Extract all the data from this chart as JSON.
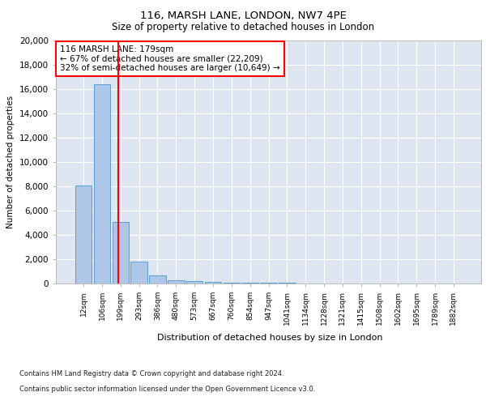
{
  "title1": "116, MARSH LANE, LONDON, NW7 4PE",
  "title2": "Size of property relative to detached houses in London",
  "xlabel": "Distribution of detached houses by size in London",
  "ylabel": "Number of detached properties",
  "bar_labels": [
    "12sqm",
    "106sqm",
    "199sqm",
    "293sqm",
    "386sqm",
    "480sqm",
    "573sqm",
    "667sqm",
    "760sqm",
    "854sqm",
    "947sqm",
    "1041sqm",
    "1134sqm",
    "1228sqm",
    "1321sqm",
    "1415sqm",
    "1508sqm",
    "1602sqm",
    "1695sqm",
    "1789sqm",
    "1882sqm"
  ],
  "bar_values": [
    8050,
    16400,
    5100,
    1800,
    650,
    250,
    180,
    130,
    100,
    60,
    50,
    40,
    0,
    0,
    0,
    0,
    0,
    0,
    0,
    0,
    0
  ],
  "bar_color": "#aec6e8",
  "bar_edge_color": "#5a9fd4",
  "red_line_bin": 1.87,
  "annotation_text": "116 MARSH LANE: 179sqm\n← 67% of detached houses are smaller (22,209)\n32% of semi-detached houses are larger (10,649) →",
  "footer1": "Contains HM Land Registry data © Crown copyright and database right 2024.",
  "footer2": "Contains public sector information licensed under the Open Government Licence v3.0.",
  "ylim": [
    0,
    20000
  ],
  "yticks": [
    0,
    2000,
    4000,
    6000,
    8000,
    10000,
    12000,
    14000,
    16000,
    18000,
    20000
  ],
  "plot_bg_color": "#dde6f0"
}
